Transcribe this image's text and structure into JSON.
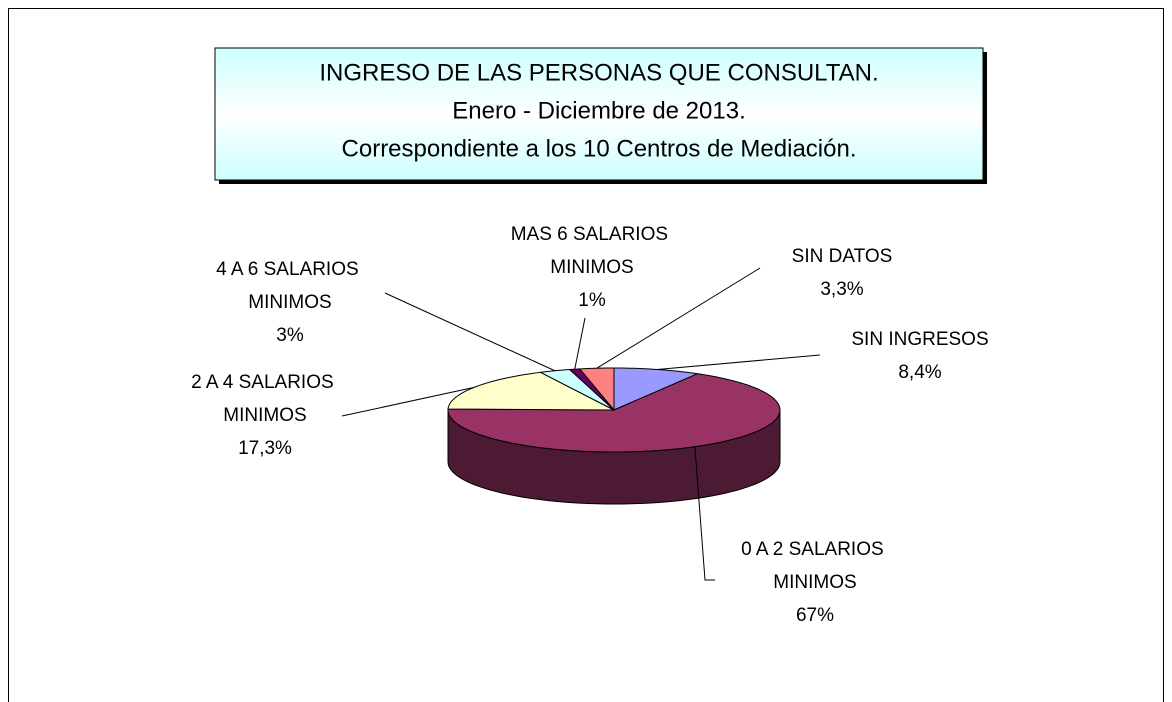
{
  "chart_data": {
    "type": "pie3d",
    "title": "INGRESO DE LAS PERSONAS QUE CONSULTAN.",
    "subtitle": [
      "Enero - Diciembre de 2013.",
      "Correspondiente a los 10 Centros de Mediación."
    ],
    "categories": [
      "SIN INGRESOS",
      "0 A 2 SALARIOS MINIMOS",
      "2 A 4 SALARIOS MINIMOS",
      "4 A 6 SALARIOS MINIMOS",
      "MAS 6 SALARIOS MINIMOS",
      "SIN DATOS"
    ],
    "values": [
      8.4,
      67,
      17.3,
      3,
      1,
      3.3
    ],
    "value_labels": [
      "8,4%",
      "67%",
      "17,3%",
      "3%",
      "1%",
      "3,3%"
    ],
    "colors": [
      "#9999ff",
      "#993366",
      "#ffffcc",
      "#ccffff",
      "#660066",
      "#ff8080"
    ]
  }
}
